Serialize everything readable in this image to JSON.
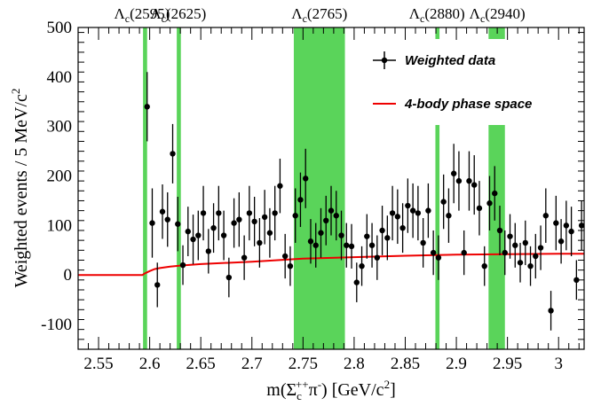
{
  "chart_data": {
    "type": "scatter",
    "xlabel": "m(Σc++π-) [GeV/c2]",
    "xlabel_parts": {
      "pre": "m(Σ",
      "sub": "c",
      "sup": "++",
      "mid": "π",
      "sup2": "-",
      "post": ") [GeV/c",
      "sup3": "2",
      "end": "]"
    },
    "ylabel": "Weighted events / 5 MeV/c2",
    "ylabel_parts": {
      "main": "Weighted events / 5 MeV/c",
      "sup": "2"
    },
    "xlim": [
      2.53,
      3.025
    ],
    "ylim": [
      -150,
      500
    ],
    "xticks": [
      "2.55",
      "2.6",
      "2.65",
      "2.7",
      "2.75",
      "2.8",
      "2.85",
      "2.9",
      "2.95",
      "3"
    ],
    "yticks": [
      "-100",
      "0",
      "100",
      "200",
      "300",
      "400",
      "500"
    ],
    "colors": {
      "band": "#5ad45a",
      "curve": "#ee0000",
      "data": "#000000"
    },
    "resonances": [
      {
        "name": "Λc(2595)",
        "base": "Λ",
        "sub": "c",
        "mass": "(2595)",
        "x": 2.5925,
        "x0": 2.5935,
        "x1": 2.5975
      },
      {
        "name": "Λc(2625)",
        "base": "Λ",
        "sub": "c",
        "mass": "(2625)",
        "x": 2.628,
        "x0": 2.6265,
        "x1": 2.6305
      },
      {
        "name": "Λc(2765)",
        "base": "Λ",
        "sub": "c",
        "mass": "(2765)",
        "x": 2.766,
        "x0": 2.741,
        "x1": 2.791
      },
      {
        "name": "Λc(2880)",
        "base": "Λ",
        "sub": "c",
        "mass": "(2880)",
        "x": 2.881,
        "x0": 2.8795,
        "x1": 2.8835
      },
      {
        "name": "Λc(2940)",
        "base": "Λ",
        "sub": "c",
        "mass": "(2940)",
        "x": 2.94,
        "x0": 2.9315,
        "x1": 2.9475
      }
    ],
    "legend": {
      "position": "top-right",
      "data_label": "Weighted data",
      "curve_label": "4-body phase space"
    },
    "series": [
      {
        "name": "Weighted data",
        "type": "scatter",
        "points": [
          {
            "x": 2.5975,
            "y": 340,
            "err": 70
          },
          {
            "x": 2.6025,
            "y": 105,
            "err": 70
          },
          {
            "x": 2.6075,
            "y": -20,
            "err": 45
          },
          {
            "x": 2.6125,
            "y": 128,
            "err": 55
          },
          {
            "x": 2.6175,
            "y": 112,
            "err": 55
          },
          {
            "x": 2.6225,
            "y": 245,
            "err": 60
          },
          {
            "x": 2.6275,
            "y": 103,
            "err": 55
          },
          {
            "x": 2.6325,
            "y": 20,
            "err": 40
          },
          {
            "x": 2.6375,
            "y": 88,
            "err": 50
          },
          {
            "x": 2.6425,
            "y": 72,
            "err": 50
          },
          {
            "x": 2.6475,
            "y": 80,
            "err": 50
          },
          {
            "x": 2.6525,
            "y": 125,
            "err": 55
          },
          {
            "x": 2.6575,
            "y": 48,
            "err": 45
          },
          {
            "x": 2.6625,
            "y": 95,
            "err": 50
          },
          {
            "x": 2.6675,
            "y": 125,
            "err": 55
          },
          {
            "x": 2.6725,
            "y": 80,
            "err": 50
          },
          {
            "x": 2.6775,
            "y": -5,
            "err": 40
          },
          {
            "x": 2.6825,
            "y": 105,
            "err": 50
          },
          {
            "x": 2.6875,
            "y": 112,
            "err": 55
          },
          {
            "x": 2.6925,
            "y": 35,
            "err": 45
          },
          {
            "x": 2.6975,
            "y": 125,
            "err": 55
          },
          {
            "x": 2.7025,
            "y": 108,
            "err": 50
          },
          {
            "x": 2.7075,
            "y": 65,
            "err": 50
          },
          {
            "x": 2.7125,
            "y": 117,
            "err": 55
          },
          {
            "x": 2.7175,
            "y": 85,
            "err": 50
          },
          {
            "x": 2.7225,
            "y": 125,
            "err": 55
          },
          {
            "x": 2.7275,
            "y": 180,
            "err": 55
          },
          {
            "x": 2.7325,
            "y": 38,
            "err": 45
          },
          {
            "x": 2.7375,
            "y": 18,
            "err": 40
          },
          {
            "x": 2.7425,
            "y": 120,
            "err": 55
          },
          {
            "x": 2.7475,
            "y": 152,
            "err": 55
          },
          {
            "x": 2.7525,
            "y": 195,
            "err": 60
          },
          {
            "x": 2.7575,
            "y": 68,
            "err": 45
          },
          {
            "x": 2.7625,
            "y": 60,
            "err": 45
          },
          {
            "x": 2.7675,
            "y": 85,
            "err": 50
          },
          {
            "x": 2.7725,
            "y": 110,
            "err": 50
          },
          {
            "x": 2.7775,
            "y": 130,
            "err": 50
          },
          {
            "x": 2.7825,
            "y": 120,
            "err": 50
          },
          {
            "x": 2.7875,
            "y": 80,
            "err": 50
          },
          {
            "x": 2.7925,
            "y": 60,
            "err": 45
          },
          {
            "x": 2.7975,
            "y": 58,
            "err": 45
          },
          {
            "x": 2.8025,
            "y": -15,
            "err": 40
          },
          {
            "x": 2.8075,
            "y": 18,
            "err": 40
          },
          {
            "x": 2.8125,
            "y": 78,
            "err": 45
          },
          {
            "x": 2.8175,
            "y": 60,
            "err": 45
          },
          {
            "x": 2.8225,
            "y": 35,
            "err": 45
          },
          {
            "x": 2.8275,
            "y": 90,
            "err": 50
          },
          {
            "x": 2.8325,
            "y": 75,
            "err": 45
          },
          {
            "x": 2.8375,
            "y": 125,
            "err": 55
          },
          {
            "x": 2.8425,
            "y": 118,
            "err": 55
          },
          {
            "x": 2.8475,
            "y": 95,
            "err": 50
          },
          {
            "x": 2.8525,
            "y": 140,
            "err": 55
          },
          {
            "x": 2.8575,
            "y": 130,
            "err": 55
          },
          {
            "x": 2.8625,
            "y": 125,
            "err": 55
          },
          {
            "x": 2.8675,
            "y": 65,
            "err": 50
          },
          {
            "x": 2.8725,
            "y": 130,
            "err": 55
          },
          {
            "x": 2.8775,
            "y": 45,
            "err": 45
          },
          {
            "x": 2.8825,
            "y": 35,
            "err": 45
          },
          {
            "x": 2.8875,
            "y": 148,
            "err": 55
          },
          {
            "x": 2.8925,
            "y": 120,
            "err": 55
          },
          {
            "x": 2.8975,
            "y": 205,
            "err": 60
          },
          {
            "x": 2.9025,
            "y": 190,
            "err": 60
          },
          {
            "x": 2.9075,
            "y": 45,
            "err": 45
          },
          {
            "x": 2.9125,
            "y": 190,
            "err": 60
          },
          {
            "x": 2.9175,
            "y": 182,
            "err": 60
          },
          {
            "x": 2.9225,
            "y": 135,
            "err": 55
          },
          {
            "x": 2.9275,
            "y": 18,
            "err": 40
          },
          {
            "x": 2.9325,
            "y": 145,
            "err": 55
          },
          {
            "x": 2.9375,
            "y": 165,
            "err": 55
          },
          {
            "x": 2.9425,
            "y": 90,
            "err": 50
          },
          {
            "x": 2.9475,
            "y": 45,
            "err": 45
          },
          {
            "x": 2.9525,
            "y": 78,
            "err": 45
          },
          {
            "x": 2.9575,
            "y": 60,
            "err": 45
          },
          {
            "x": 2.9625,
            "y": 25,
            "err": 40
          },
          {
            "x": 2.9675,
            "y": 65,
            "err": 45
          },
          {
            "x": 2.9725,
            "y": 18,
            "err": 40
          },
          {
            "x": 2.9775,
            "y": 38,
            "err": 45
          },
          {
            "x": 2.9825,
            "y": 55,
            "err": 45
          },
          {
            "x": 2.9875,
            "y": 120,
            "err": 55
          },
          {
            "x": 2.9925,
            "y": -72,
            "err": 40
          },
          {
            "x": 2.9975,
            "y": 105,
            "err": 55
          },
          {
            "x": 3.0025,
            "y": 68,
            "err": 45
          },
          {
            "x": 3.0075,
            "y": 100,
            "err": 50
          },
          {
            "x": 3.0125,
            "y": 88,
            "err": 50
          },
          {
            "x": 3.0175,
            "y": -10,
            "err": 40
          },
          {
            "x": 3.0225,
            "y": 100,
            "err": 50
          }
        ]
      },
      {
        "name": "4-body phase space",
        "type": "line",
        "points": [
          [
            2.53,
            0
          ],
          [
            2.593,
            0
          ],
          [
            2.595,
            3
          ],
          [
            2.6,
            8
          ],
          [
            2.605,
            12
          ],
          [
            2.61,
            14
          ],
          [
            2.62,
            17
          ],
          [
            2.63,
            19
          ],
          [
            2.65,
            22
          ],
          [
            2.7,
            27
          ],
          [
            2.75,
            33
          ],
          [
            2.8,
            36
          ],
          [
            2.85,
            39
          ],
          [
            2.9,
            41
          ],
          [
            2.95,
            42
          ],
          [
            3.0,
            43
          ],
          [
            3.025,
            43
          ]
        ]
      }
    ]
  }
}
